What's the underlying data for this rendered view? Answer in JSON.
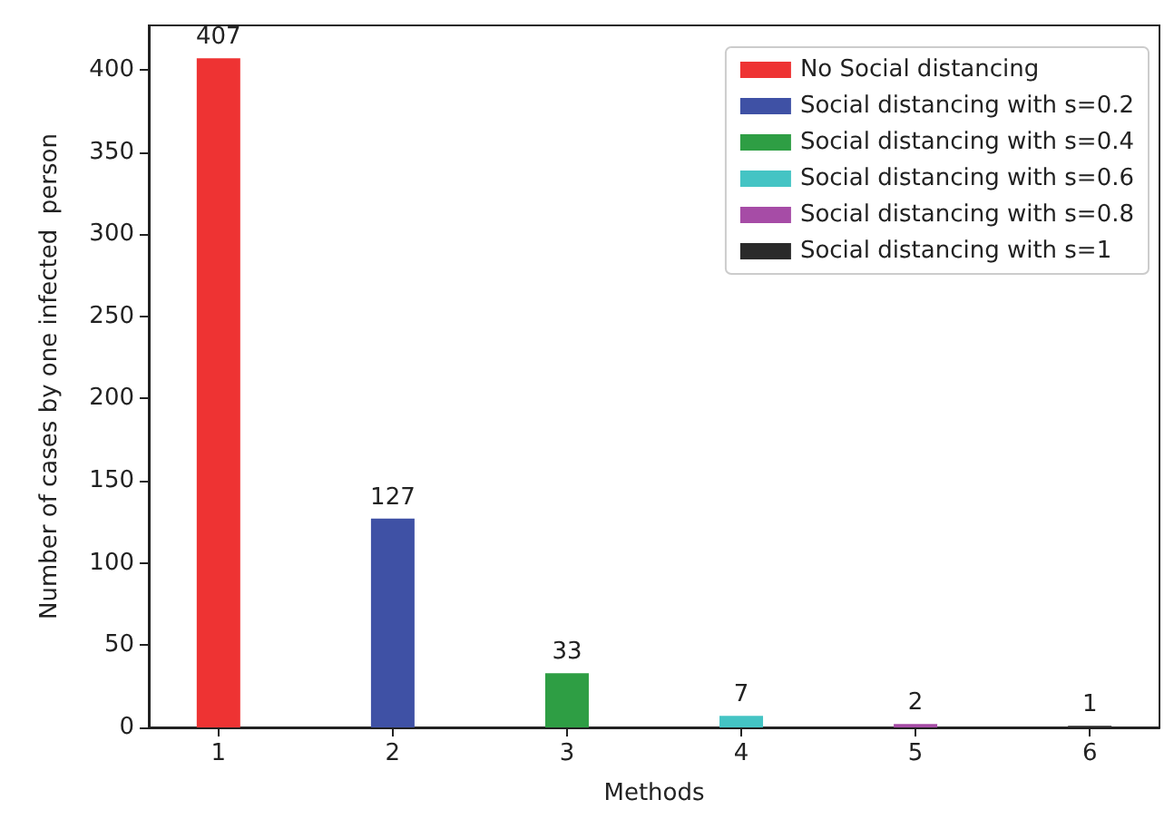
{
  "chart_data": {
    "type": "bar",
    "xlabel": "Methods",
    "ylabel": "Number of cases by one infected  person",
    "x": [
      1,
      2,
      3,
      4,
      5,
      6
    ],
    "series": [
      {
        "name": "No Social distancing",
        "color": "#ee3333",
        "values": [
          407,
          null,
          null,
          null,
          null,
          null
        ]
      },
      {
        "name": "Social distancing with s=0.2",
        "color": "#3f51a5",
        "values": [
          null,
          127,
          null,
          null,
          null,
          null
        ]
      },
      {
        "name": "Social distancing with s=0.4",
        "color": "#2e9e44",
        "values": [
          null,
          null,
          33,
          null,
          null,
          null
        ]
      },
      {
        "name": "Social distancing with s=0.6",
        "color": "#44c4c4",
        "values": [
          null,
          null,
          null,
          7,
          null,
          null
        ]
      },
      {
        "name": "Social distancing with s=0.8",
        "color": "#a64ca6",
        "values": [
          null,
          null,
          null,
          null,
          2,
          null
        ]
      },
      {
        "name": "Social distancing with s=1",
        "color": "#2a2a2a",
        "values": [
          null,
          null,
          null,
          null,
          null,
          1
        ]
      }
    ],
    "xlim": [
      0.6,
      6.4
    ],
    "xticks": [
      1,
      2,
      3,
      4,
      5,
      6
    ],
    "ylim": [
      0,
      427
    ],
    "yticks": [
      0,
      50,
      100,
      150,
      200,
      250,
      300,
      350,
      400
    ],
    "data_labels": true,
    "legend": "top right",
    "grid": false
  }
}
